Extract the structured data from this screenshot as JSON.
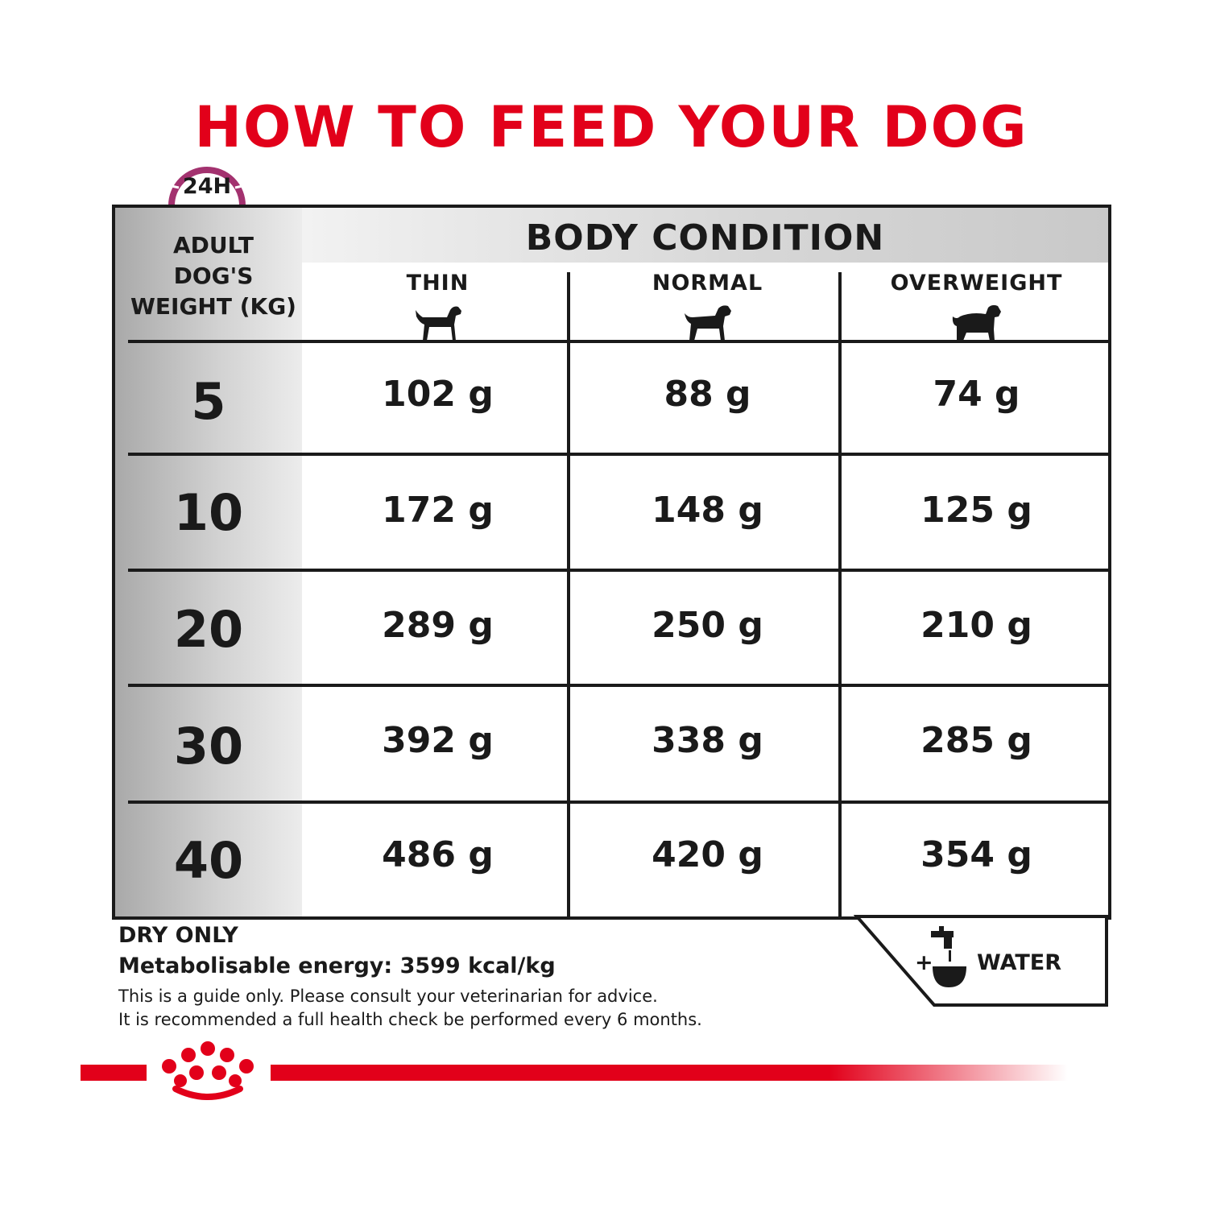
{
  "title": "HOW TO FEED YOUR DOG",
  "clock_label": "24H",
  "corner_label": [
    "ADULT",
    "DOG'S",
    "WEIGHT (KG)"
  ],
  "body_condition": "BODY CONDITION",
  "columns": [
    "THIN",
    "NORMAL",
    "OVERWEIGHT"
  ],
  "icons": [
    "clock-icon",
    "thin-dog-icon",
    "normal-dog-icon",
    "overweight-dog-icon",
    "water-tap-icon",
    "crown-logo-icon"
  ],
  "rows": [
    {
      "weight": "5",
      "values": [
        "102 g",
        "88 g",
        "74 g"
      ]
    },
    {
      "weight": "10",
      "values": [
        "172 g",
        "148 g",
        "125 g"
      ]
    },
    {
      "weight": "20",
      "values": [
        "289 g",
        "250 g",
        "210 g"
      ]
    },
    {
      "weight": "30",
      "values": [
        "392 g",
        "338 g",
        "285 g"
      ]
    },
    {
      "weight": "40",
      "values": [
        "486 g",
        "420 g",
        "354 g"
      ]
    }
  ],
  "notes": {
    "dry_only": "DRY ONLY",
    "energy": "Metabolisable energy: 3599 kcal/kg",
    "guide": "This is a guide only. Please consult your veterinarian for advice.",
    "check": "It is recommended a full health check be performed every 6 months."
  },
  "water": {
    "plus": "+",
    "label": "WATER"
  },
  "colors": {
    "brand_red": "#e2001a",
    "clock_purple": "#a3326f",
    "text": "#1a1a1a"
  }
}
